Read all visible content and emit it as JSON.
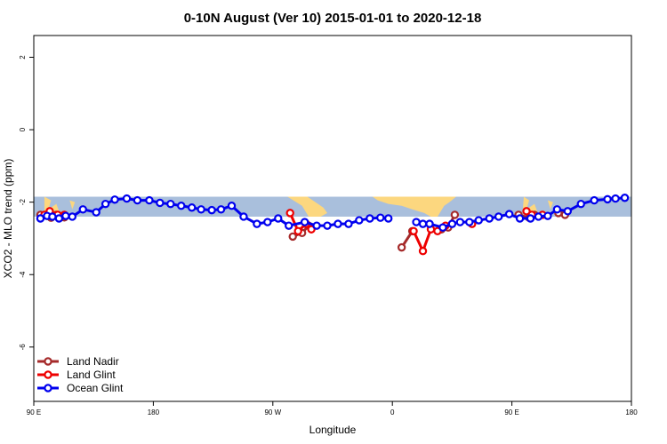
{
  "chart_data": {
    "type": "line",
    "title": "0-10N August (Ver 10)   2015-01-01 to 2020-12-18",
    "xlabel": "Longitude",
    "ylabel": "XCO2 - MLO trend (ppm)",
    "xlim": [
      90,
      450
    ],
    "ylim": [
      -7.5,
      2.6
    ],
    "x_ticks": [
      {
        "value": 90,
        "label": "90 E"
      },
      {
        "value": 180,
        "label": "180"
      },
      {
        "value": 270,
        "label": "90 W"
      },
      {
        "value": 360,
        "label": "0"
      },
      {
        "value": 450,
        "label": "90 E"
      },
      {
        "value": 540,
        "label": "180"
      }
    ],
    "y_ticks": [
      {
        "value": 2,
        "label": "2"
      },
      {
        "value": 0,
        "label": "0"
      },
      {
        "value": -2,
        "label": "-2"
      },
      {
        "value": -4,
        "label": "-4"
      },
      {
        "value": -6,
        "label": "-6"
      }
    ],
    "x_axis_range": [
      90,
      540
    ],
    "band": {
      "ymin": -2.4,
      "ymax": -1.85,
      "color": "#a9bfdc",
      "land_color": "#fcd77f"
    },
    "land_patches": [
      {
        "x": [
          98,
          103,
          101,
          107,
          110,
          103,
          98
        ],
        "y": [
          -1.85,
          -1.95,
          -2.2,
          -2.05,
          -2.35,
          -2.4,
          -2.3
        ]
      },
      {
        "x": [
          117,
          121,
          119
        ],
        "y": [
          -1.95,
          -2.0,
          -2.2
        ]
      },
      {
        "x": [
          281,
          288,
          296,
          302,
          308,
          311,
          306,
          297,
          292
        ],
        "y": [
          -1.85,
          -1.85,
          -1.85,
          -2.0,
          -2.15,
          -2.3,
          -2.4,
          -2.4,
          -2.1
        ]
      },
      {
        "x": [
          345,
          408,
          403,
          399,
          394,
          389,
          384,
          375,
          367,
          357,
          349
        ],
        "y": [
          -1.85,
          -1.85,
          -2.0,
          -2.1,
          -2.4,
          -2.4,
          -2.3,
          -2.2,
          -2.1,
          -2.05,
          -1.95
        ]
      },
      {
        "x": [
          459,
          463,
          461,
          467,
          470,
          463,
          458
        ],
        "y": [
          -1.85,
          -1.95,
          -2.2,
          -2.05,
          -2.35,
          -2.4,
          -2.3
        ]
      },
      {
        "x": [
          477,
          481,
          479
        ],
        "y": [
          -1.95,
          -2.0,
          -2.2
        ]
      }
    ],
    "legend_position": "bottom-left",
    "series": [
      {
        "name": "Land Nadir",
        "color": "#a52a2a",
        "segments": [
          {
            "x": [
              95,
              103,
              107,
              113
            ],
            "y": [
              -2.35,
              -2.43,
              -2.35,
              -2.42
            ]
          },
          {
            "x": [
              285,
              292,
              297
            ],
            "y": [
              -2.95,
              -2.85,
              -2.65
            ]
          },
          {
            "x": [
              367,
              375
            ],
            "y": [
              -3.25,
              -2.8
            ]
          },
          {
            "x": [
              397,
              402,
              407
            ],
            "y": [
              -2.75,
              -2.7,
              -2.35
            ]
          },
          {
            "x": [
              455,
              463,
              467
            ],
            "y": [
              -2.35,
              -2.43,
              -2.35
            ]
          },
          {
            "x": [
              485,
              490
            ],
            "y": [
              -2.3,
              -2.35
            ]
          }
        ]
      },
      {
        "name": "Land Glint",
        "color": "#ee0000",
        "segments": [
          {
            "x": [
              98,
              102,
              108,
              113
            ],
            "y": [
              -2.35,
              -2.25,
              -2.35,
              -2.35
            ]
          },
          {
            "x": [
              283,
              289,
              295,
              299
            ],
            "y": [
              -2.3,
              -2.8,
              -2.6,
              -2.75
            ]
          },
          {
            "x": [
              376,
              383,
              389,
              394,
              400
            ],
            "y": [
              -2.8,
              -3.35,
              -2.75,
              -2.8,
              -2.65
            ]
          },
          {
            "x": [
              420
            ],
            "y": [
              -2.6
            ]
          },
          {
            "x": [
              461,
              465,
              473
            ],
            "y": [
              -2.25,
              -2.35,
              -2.35
            ]
          }
        ]
      },
      {
        "name": "Ocean Glint",
        "color": "#0000ee",
        "segments": [
          {
            "x": [
              95,
              100,
              104,
              109,
              114,
              119,
              127,
              137,
              144,
              151,
              160,
              168,
              177,
              185,
              193,
              201,
              209,
              216,
              224,
              231,
              239,
              248,
              258,
              266,
              274,
              282,
              294,
              303,
              311,
              319,
              327,
              335,
              343,
              351,
              357
            ],
            "y": [
              -2.45,
              -2.38,
              -2.4,
              -2.45,
              -2.38,
              -2.4,
              -2.2,
              -2.28,
              -2.05,
              -1.93,
              -1.9,
              -1.95,
              -1.95,
              -2.02,
              -2.05,
              -2.1,
              -2.15,
              -2.2,
              -2.22,
              -2.2,
              -2.1,
              -2.4,
              -2.6,
              -2.55,
              -2.45,
              -2.65,
              -2.55,
              -2.65,
              -2.65,
              -2.6,
              -2.6,
              -2.5,
              -2.45,
              -2.43,
              -2.45
            ]
          },
          {
            "x": [
              378,
              383,
              388,
              398,
              405,
              411,
              418,
              425,
              433,
              440,
              448,
              456,
              464,
              470,
              477,
              484,
              492,
              502,
              512,
              522,
              528,
              535
            ],
            "y": [
              -2.55,
              -2.6,
              -2.6,
              -2.7,
              -2.6,
              -2.55,
              -2.55,
              -2.5,
              -2.45,
              -2.4,
              -2.33,
              -2.45,
              -2.45,
              -2.4,
              -2.38,
              -2.2,
              -2.25,
              -2.05,
              -1.95,
              -1.92,
              -1.9,
              -1.88
            ]
          }
        ]
      }
    ]
  }
}
